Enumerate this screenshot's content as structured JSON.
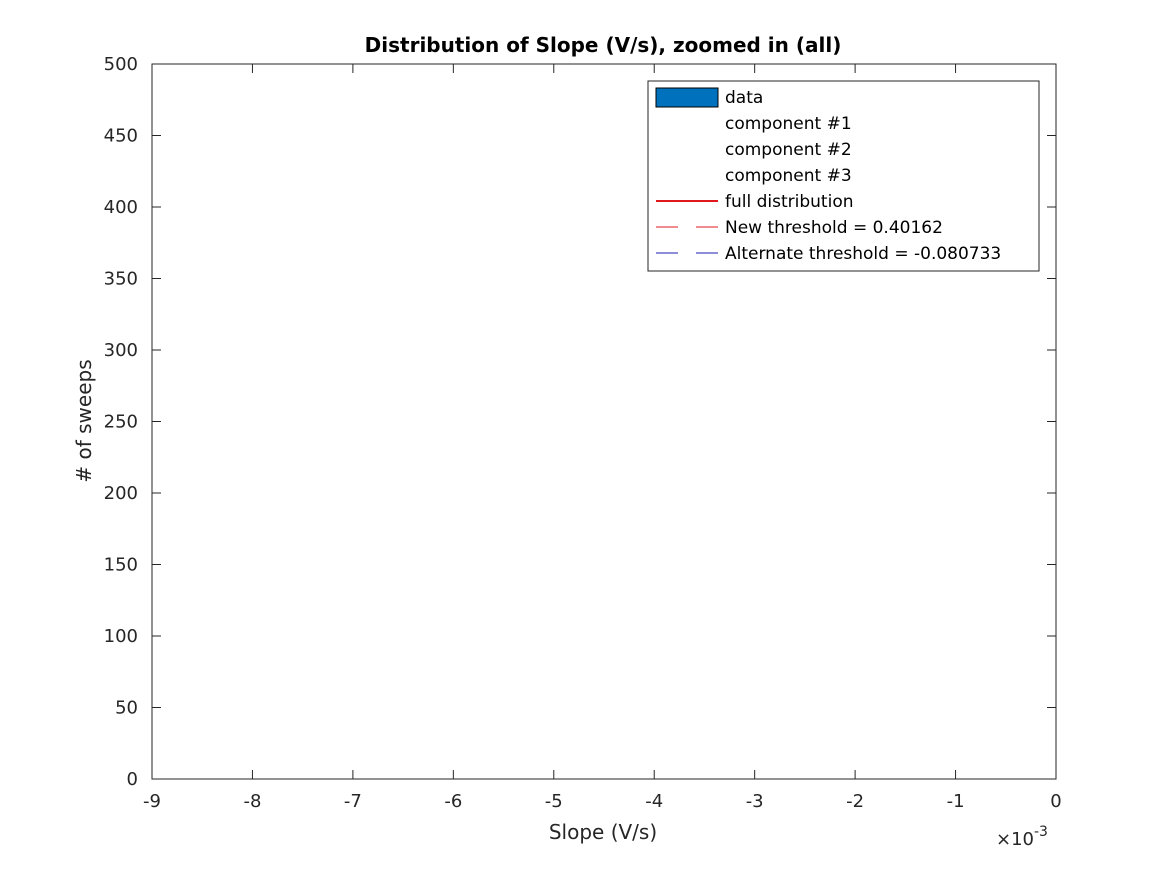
{
  "chart_data": {
    "type": "bar",
    "title": "Distribution of Slope (V/s), zoomed in (all)",
    "xlabel": "Slope (V/s)",
    "ylabel": "# of sweeps",
    "xlim": [
      -9,
      0
    ],
    "ylim": [
      0,
      500
    ],
    "x_exponent_label": "×10",
    "x_exponent": "-3",
    "xticks": [
      "-9",
      "-8",
      "-7",
      "-6",
      "-5",
      "-4",
      "-3",
      "-2",
      "-1",
      "0"
    ],
    "yticks": [
      "0",
      "50",
      "100",
      "150",
      "200",
      "250",
      "300",
      "350",
      "400",
      "450",
      "500"
    ],
    "grid": false,
    "legend_position": "top-right",
    "legend": [
      {
        "label": "data",
        "style": "patch",
        "color": "#0072BD"
      },
      {
        "label": "component #1",
        "style": "none",
        "color": "#ffffff"
      },
      {
        "label": "component #2",
        "style": "none",
        "color": "#ffffff"
      },
      {
        "label": "component #3",
        "style": "none",
        "color": "#ffffff"
      },
      {
        "label": "full distribution",
        "style": "solid",
        "color": "#E0181B"
      },
      {
        "label": "New threshold = 0.40162",
        "style": "dashed",
        "color": "#E0181B"
      },
      {
        "label": "Alternate threshold = -0.080733",
        "style": "dashed",
        "color": "#1B1BB5"
      }
    ],
    "series": []
  }
}
